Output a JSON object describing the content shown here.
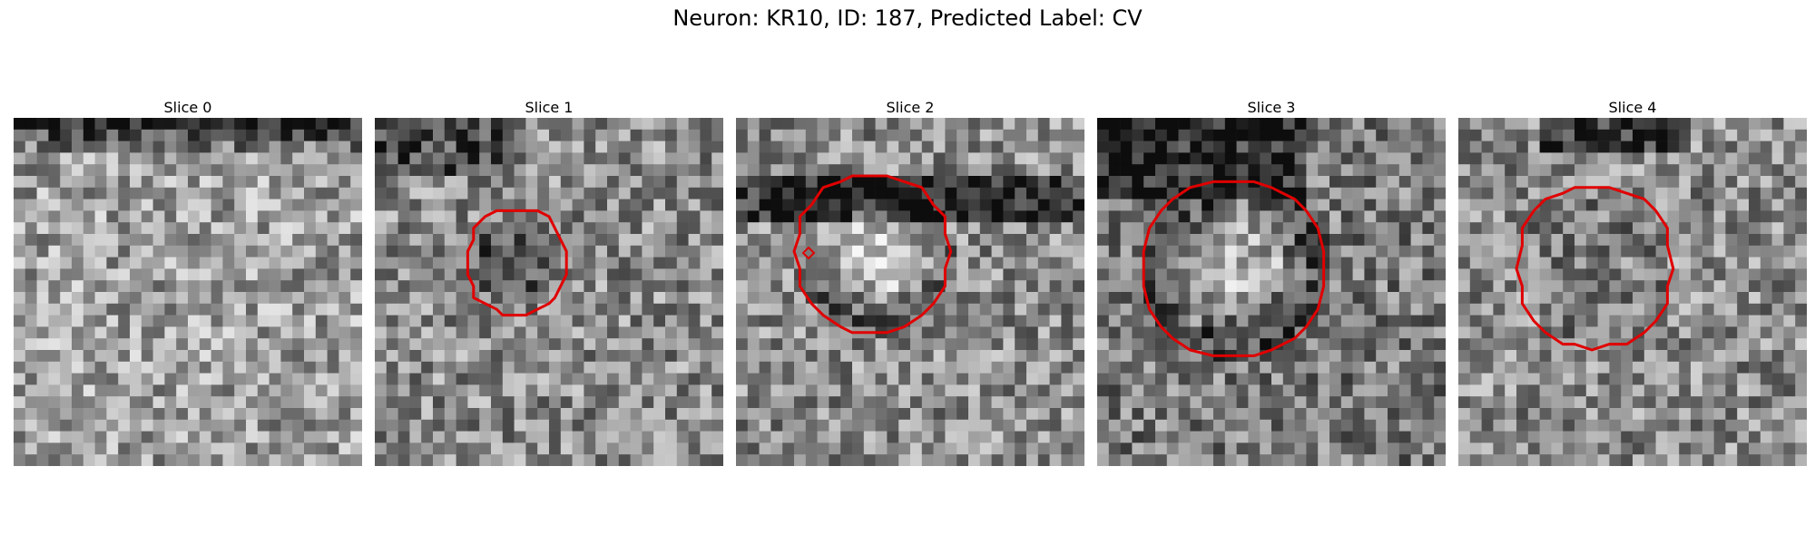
{
  "figure": {
    "title": "Neuron: KR10, ID: 187, Predicted Label: CV"
  },
  "panels": [
    {
      "title": "Slice 0",
      "seed": 11,
      "bright": 0.62,
      "roi": false,
      "center": "none"
    },
    {
      "title": "Slice 1",
      "seed": 23,
      "bright": 0.55,
      "roi": true,
      "center": "dark"
    },
    {
      "title": "Slice 2",
      "seed": 37,
      "bright": 0.55,
      "roi": true,
      "center": "bright"
    },
    {
      "title": "Slice 3",
      "seed": 53,
      "bright": 0.48,
      "roi": true,
      "center": "bright"
    },
    {
      "title": "Slice 4",
      "seed": 71,
      "bright": 0.55,
      "roi": true,
      "center": "medium"
    }
  ],
  "colors": {
    "roi_contour": "#e00000",
    "background": "#ffffff"
  }
}
